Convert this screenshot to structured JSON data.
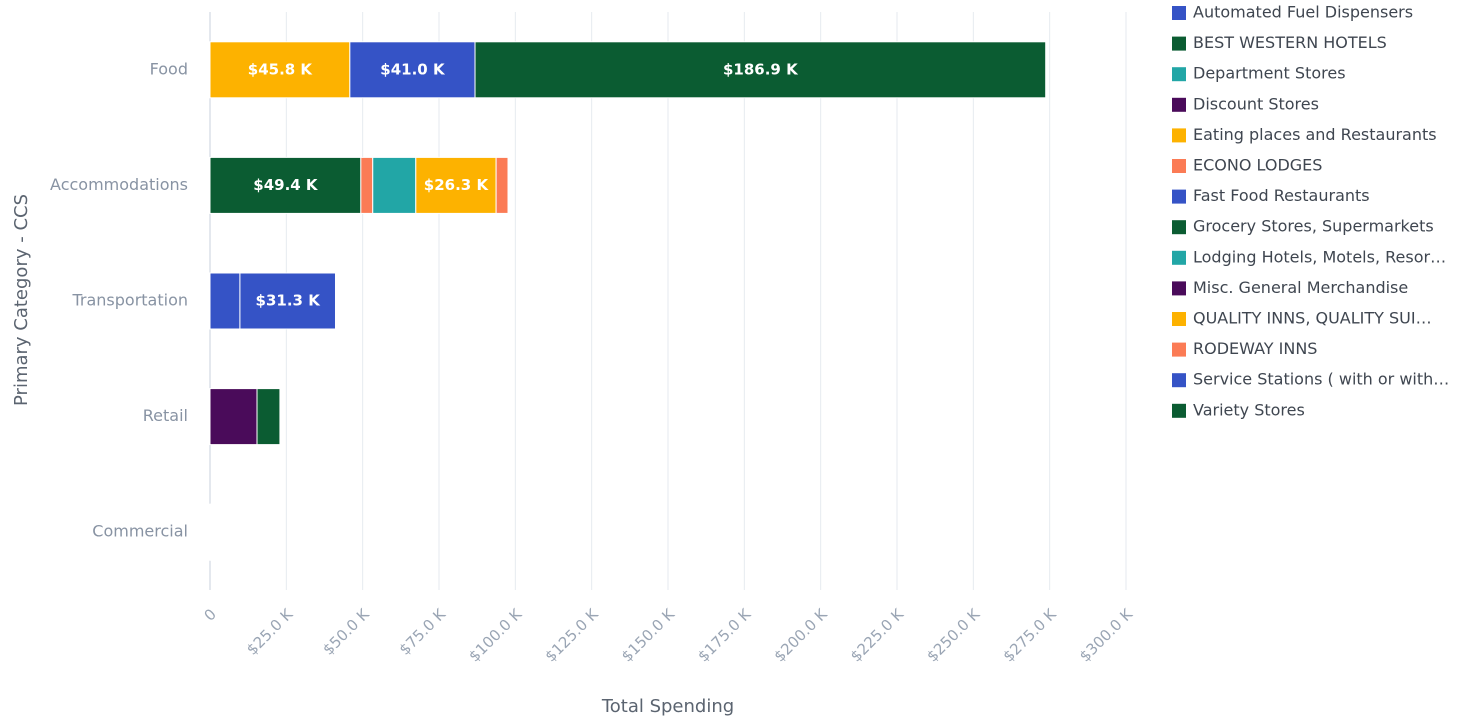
{
  "chart_data": {
    "type": "stacked_barh",
    "x_label": "Total Spending",
    "y_label": "Primary Category - CCS",
    "categories": [
      "Food",
      "Accommodations",
      "Transportation",
      "Retail",
      "Commercial"
    ],
    "series": [
      {
        "name": "Automated Fuel Dispensers",
        "color": "#3553c6",
        "values": [
          null,
          null,
          9800,
          null,
          null
        ],
        "value_labels": [
          null,
          null,
          null,
          null,
          null
        ]
      },
      {
        "name": "BEST WESTERN HOTELS",
        "color": "#0b5c32",
        "values": [
          null,
          49400,
          null,
          null,
          null
        ],
        "value_labels": [
          null,
          "$49.4 K",
          null,
          null,
          null
        ]
      },
      {
        "name": "Department Stores",
        "color": "#22a6a6",
        "values": [
          null,
          null,
          null,
          null,
          200
        ],
        "value_labels": [
          null,
          null,
          null,
          null,
          null
        ]
      },
      {
        "name": "Discount Stores",
        "color": "#4a0b5a",
        "values": [
          null,
          null,
          null,
          null,
          200
        ],
        "value_labels": [
          null,
          null,
          null,
          null,
          null
        ]
      },
      {
        "name": "Eating places and Restaurants",
        "color": "#fdb200",
        "values": [
          45800,
          null,
          null,
          null,
          null
        ],
        "value_labels": [
          "$45.8 K",
          null,
          null,
          null,
          null
        ]
      },
      {
        "name": "ECONO LODGES",
        "color": "#fb7b55",
        "values": [
          null,
          3900,
          null,
          null,
          null
        ],
        "value_labels": [
          null,
          null,
          null,
          null,
          null
        ]
      },
      {
        "name": "Fast Food Restaurants",
        "color": "#3553c6",
        "values": [
          41000,
          null,
          null,
          null,
          null
        ],
        "value_labels": [
          "$41.0 K",
          null,
          null,
          null,
          null
        ]
      },
      {
        "name": "Grocery Stores, Supermarkets",
        "color": "#0b5c32",
        "values": [
          186900,
          null,
          null,
          null,
          null
        ],
        "value_labels": [
          "$186.9 K",
          null,
          null,
          null,
          null
        ]
      },
      {
        "name": "Lodging Hotels, Motels, Resor…",
        "color": "#22a6a6",
        "values": [
          null,
          14100,
          null,
          null,
          null
        ],
        "value_labels": [
          null,
          null,
          null,
          null,
          null
        ]
      },
      {
        "name": "Misc. General Merchandise",
        "color": "#4a0b5a",
        "values": [
          null,
          null,
          null,
          15400,
          null
        ],
        "value_labels": [
          null,
          null,
          null,
          null,
          null
        ]
      },
      {
        "name": "QUALITY INNS, QUALITY SUI…",
        "color": "#fdb200",
        "values": [
          null,
          26300,
          null,
          null,
          null
        ],
        "value_labels": [
          null,
          "$26.3 K",
          null,
          null,
          null
        ]
      },
      {
        "name": "RODEWAY INNS",
        "color": "#fb7b55",
        "values": [
          null,
          3900,
          null,
          null,
          null
        ],
        "value_labels": [
          null,
          null,
          null,
          null,
          null
        ]
      },
      {
        "name": "Service Stations ( with or with…",
        "color": "#3553c6",
        "values": [
          null,
          null,
          31300,
          null,
          null
        ],
        "value_labels": [
          null,
          null,
          "$31.3 K",
          null,
          null
        ]
      },
      {
        "name": "Variety Stores",
        "color": "#0b5c32",
        "values": [
          null,
          null,
          null,
          7500,
          null
        ],
        "value_labels": [
          null,
          null,
          null,
          null,
          null
        ]
      }
    ],
    "xlim": [
      0,
      300000
    ],
    "xticks": [
      0,
      {
        "value": 25000,
        "label": "$25.0 K"
      },
      {
        "value": 50000,
        "label": "$50.0 K"
      },
      {
        "value": 75000,
        "label": "$75.0 K"
      },
      {
        "value": 100000,
        "label": "$100.0 K"
      },
      {
        "value": 125000,
        "label": "$125.0 K"
      },
      {
        "value": 150000,
        "label": "$150.0 K"
      },
      {
        "value": 175000,
        "label": "$175.0 K"
      },
      {
        "value": 200000,
        "label": "$200.0 K"
      },
      {
        "value": 225000,
        "label": "$225.0 K"
      },
      {
        "value": 250000,
        "label": "$250.0 K"
      },
      {
        "value": 275000,
        "label": "$275.0 K"
      },
      {
        "value": 300000,
        "label": "$300.0 K"
      }
    ],
    "grid": true,
    "legend": "right"
  }
}
